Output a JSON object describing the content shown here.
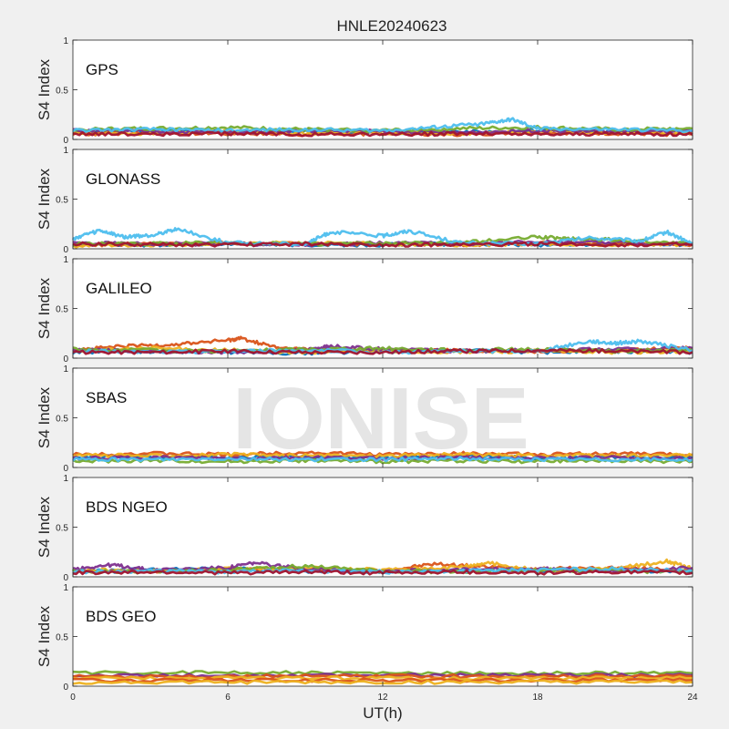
{
  "figure": {
    "title": "HNLE20240623",
    "watermark": "IONISE",
    "xlabel": "UT(h)",
    "background": "#f0f0f0"
  },
  "chart_data": [
    {
      "type": "line",
      "panel_label": "GPS",
      "ylabel": "S4 Index",
      "xlim": [
        0,
        24
      ],
      "ylim": [
        0,
        1
      ],
      "xticks": [
        0,
        6,
        12,
        18,
        24
      ],
      "yticks": [
        0,
        0.5,
        1
      ],
      "ytick_labels": [
        "0",
        "0.5",
        "1"
      ],
      "series": [
        {
          "x": [
            0,
            3,
            6,
            9,
            12,
            15,
            18,
            21,
            24
          ],
          "values": [
            0.08,
            0.09,
            0.07,
            0.08,
            0.06,
            0.07,
            0.09,
            0.08,
            0.08
          ],
          "color": "#0072bd"
        },
        {
          "x": [
            0,
            3,
            6,
            9,
            12,
            15,
            18,
            21,
            24
          ],
          "values": [
            0.05,
            0.07,
            0.06,
            0.05,
            0.06,
            0.05,
            0.07,
            0.06,
            0.05
          ],
          "color": "#d95319"
        },
        {
          "x": [
            0,
            3,
            6,
            9,
            12,
            15,
            18,
            21,
            24
          ],
          "values": [
            0.07,
            0.06,
            0.08,
            0.06,
            0.07,
            0.06,
            0.08,
            0.07,
            0.07
          ],
          "color": "#edb120"
        },
        {
          "x": [
            0,
            3,
            6,
            9,
            12,
            15,
            18,
            21,
            24
          ],
          "values": [
            0.09,
            0.08,
            0.07,
            0.09,
            0.08,
            0.07,
            0.09,
            0.08,
            0.08
          ],
          "color": "#7e2f8e"
        },
        {
          "x": [
            0,
            3,
            6,
            9,
            12,
            15,
            18,
            21,
            24
          ],
          "values": [
            0.1,
            0.11,
            0.12,
            0.1,
            0.09,
            0.11,
            0.12,
            0.1,
            0.11
          ],
          "color": "#77ac30"
        },
        {
          "x": [
            0,
            3,
            6,
            9,
            12,
            14,
            16,
            17,
            18,
            21,
            24
          ],
          "values": [
            0.09,
            0.1,
            0.09,
            0.1,
            0.09,
            0.12,
            0.16,
            0.2,
            0.11,
            0.1,
            0.09
          ],
          "color": "#4dbeee"
        },
        {
          "x": [
            0,
            3,
            6,
            9,
            12,
            15,
            18,
            21,
            24
          ],
          "values": [
            0.06,
            0.05,
            0.06,
            0.05,
            0.05,
            0.06,
            0.05,
            0.06,
            0.05
          ],
          "color": "#a2142f"
        }
      ]
    },
    {
      "type": "line",
      "panel_label": "GLONASS",
      "ylabel": "S4 Index",
      "xlim": [
        0,
        24
      ],
      "ylim": [
        0,
        1
      ],
      "xticks": [
        0,
        6,
        12,
        18,
        24
      ],
      "yticks": [
        0,
        0.5,
        1
      ],
      "ytick_labels": [
        "0",
        "0.5",
        "1"
      ],
      "series": [
        {
          "x": [
            0,
            3,
            6,
            9,
            12,
            15,
            18,
            21,
            24
          ],
          "values": [
            0.05,
            0.04,
            0.05,
            0.04,
            0.04,
            0.05,
            0.04,
            0.05,
            0.04
          ],
          "color": "#0072bd"
        },
        {
          "x": [
            0,
            3,
            6,
            9,
            12,
            15,
            18,
            21,
            24
          ],
          "values": [
            0.04,
            0.05,
            0.06,
            0.05,
            0.05,
            0.04,
            0.06,
            0.05,
            0.04
          ],
          "color": "#d95319"
        },
        {
          "x": [
            0,
            3,
            6,
            9,
            12,
            15,
            18,
            21,
            24
          ],
          "values": [
            0.03,
            0.04,
            0.05,
            0.06,
            0.05,
            0.04,
            0.05,
            0.04,
            0.04
          ],
          "color": "#edb120"
        },
        {
          "x": [
            0,
            3,
            6,
            9,
            12,
            15,
            18,
            21,
            24
          ],
          "values": [
            0.06,
            0.05,
            0.05,
            0.04,
            0.06,
            0.05,
            0.07,
            0.06,
            0.05
          ],
          "color": "#7e2f8e"
        },
        {
          "x": [
            0,
            3,
            6,
            9,
            12,
            15,
            18,
            19.5,
            21,
            24
          ],
          "values": [
            0.05,
            0.05,
            0.06,
            0.05,
            0.05,
            0.06,
            0.12,
            0.1,
            0.09,
            0.05
          ],
          "color": "#77ac30"
        },
        {
          "x": [
            0,
            1,
            2,
            3,
            4,
            6,
            9,
            10,
            12,
            13,
            15,
            18,
            20,
            22,
            23,
            24
          ],
          "values": [
            0.1,
            0.18,
            0.12,
            0.13,
            0.2,
            0.06,
            0.05,
            0.17,
            0.13,
            0.18,
            0.06,
            0.05,
            0.11,
            0.08,
            0.17,
            0.05
          ],
          "color": "#4dbeee"
        },
        {
          "x": [
            0,
            3,
            6,
            9,
            12,
            15,
            18,
            21,
            24
          ],
          "values": [
            0.05,
            0.04,
            0.04,
            0.05,
            0.04,
            0.04,
            0.05,
            0.04,
            0.04
          ],
          "color": "#a2142f"
        }
      ]
    },
    {
      "type": "line",
      "panel_label": "GALILEO",
      "ylabel": "S4 Index",
      "xlim": [
        0,
        24
      ],
      "ylim": [
        0,
        1
      ],
      "xticks": [
        0,
        6,
        12,
        18,
        24
      ],
      "yticks": [
        0,
        0.5,
        1
      ],
      "ytick_labels": [
        "0",
        "0.5",
        "1"
      ],
      "series": [
        {
          "x": [
            0,
            3,
            6,
            9,
            12,
            15,
            18,
            21,
            24
          ],
          "values": [
            0.06,
            0.07,
            0.06,
            0.05,
            0.07,
            0.08,
            0.06,
            0.07,
            0.06
          ],
          "color": "#0072bd"
        },
        {
          "x": [
            0,
            2,
            4,
            6,
            6.5,
            8,
            10,
            12,
            15,
            18,
            21,
            24
          ],
          "values": [
            0.08,
            0.12,
            0.14,
            0.18,
            0.2,
            0.1,
            0.08,
            0.07,
            0.08,
            0.07,
            0.08,
            0.1
          ],
          "color": "#d95319"
        },
        {
          "x": [
            0,
            3,
            6,
            9,
            12,
            15,
            18,
            21,
            24
          ],
          "values": [
            0.07,
            0.1,
            0.08,
            0.06,
            0.07,
            0.06,
            0.07,
            0.06,
            0.07
          ],
          "color": "#edb120"
        },
        {
          "x": [
            0,
            3,
            6,
            9,
            10,
            12,
            15,
            18,
            21,
            24
          ],
          "values": [
            0.08,
            0.07,
            0.06,
            0.08,
            0.12,
            0.09,
            0.07,
            0.08,
            0.09,
            0.1
          ],
          "color": "#7e2f8e"
        },
        {
          "x": [
            0,
            3,
            6,
            9,
            12,
            15,
            18,
            21,
            24
          ],
          "values": [
            0.09,
            0.08,
            0.07,
            0.09,
            0.1,
            0.08,
            0.09,
            0.07,
            0.08
          ],
          "color": "#77ac30"
        },
        {
          "x": [
            0,
            3,
            6,
            9,
            12,
            15,
            18,
            20,
            21,
            22,
            24
          ],
          "values": [
            0.07,
            0.06,
            0.07,
            0.08,
            0.06,
            0.07,
            0.07,
            0.17,
            0.15,
            0.17,
            0.08
          ],
          "color": "#4dbeee"
        },
        {
          "x": [
            0,
            3,
            6,
            9,
            12,
            15,
            18,
            21,
            24
          ],
          "values": [
            0.06,
            0.06,
            0.07,
            0.06,
            0.06,
            0.07,
            0.08,
            0.07,
            0.06
          ],
          "color": "#a2142f"
        }
      ]
    },
    {
      "type": "line",
      "panel_label": "SBAS",
      "ylabel": "S4 Index",
      "xlim": [
        0,
        24
      ],
      "ylim": [
        0,
        1
      ],
      "xticks": [
        0,
        6,
        12,
        18,
        24
      ],
      "yticks": [
        0,
        0.5,
        1
      ],
      "ytick_labels": [
        "0",
        "0.5",
        "1"
      ],
      "series": [
        {
          "x": [
            0,
            3,
            6,
            9,
            12,
            15,
            18,
            21,
            24
          ],
          "values": [
            0.1,
            0.11,
            0.1,
            0.11,
            0.1,
            0.11,
            0.1,
            0.11,
            0.1
          ],
          "color": "#0072bd"
        },
        {
          "x": [
            0,
            3,
            6,
            9,
            12,
            15,
            18,
            21,
            24
          ],
          "values": [
            0.13,
            0.14,
            0.13,
            0.15,
            0.13,
            0.14,
            0.13,
            0.14,
            0.13
          ],
          "color": "#d95319"
        },
        {
          "x": [
            0,
            3,
            6,
            9,
            12,
            15,
            18,
            21,
            24
          ],
          "values": [
            0.12,
            0.12,
            0.13,
            0.12,
            0.12,
            0.13,
            0.12,
            0.12,
            0.12
          ],
          "color": "#edb120"
        },
        {
          "x": [
            0,
            3,
            6,
            9,
            12,
            15,
            18,
            21,
            24
          ],
          "values": [
            0.09,
            0.1,
            0.09,
            0.1,
            0.09,
            0.1,
            0.09,
            0.1,
            0.09
          ],
          "color": "#7e2f8e"
        },
        {
          "x": [
            0,
            3,
            6,
            9,
            12,
            15,
            18,
            21,
            24
          ],
          "values": [
            0.06,
            0.07,
            0.06,
            0.07,
            0.06,
            0.07,
            0.06,
            0.07,
            0.06
          ],
          "color": "#77ac30"
        },
        {
          "x": [
            0,
            3,
            6,
            9,
            12,
            15,
            18,
            21,
            24
          ],
          "values": [
            0.08,
            0.08,
            0.09,
            0.08,
            0.08,
            0.09,
            0.08,
            0.08,
            0.08
          ],
          "color": "#4dbeee"
        }
      ]
    },
    {
      "type": "line",
      "panel_label": "BDS NGEO",
      "ylabel": "S4 Index",
      "xlim": [
        0,
        24
      ],
      "ylim": [
        0,
        1
      ],
      "xticks": [
        0,
        6,
        12,
        18,
        24
      ],
      "yticks": [
        0,
        0.5,
        1
      ],
      "ytick_labels": [
        "0",
        "0.5",
        "1"
      ],
      "series": [
        {
          "x": [
            0,
            3,
            6,
            9,
            12,
            15,
            18,
            21,
            24
          ],
          "values": [
            0.06,
            0.07,
            0.08,
            0.06,
            0.05,
            0.07,
            0.06,
            0.07,
            0.05
          ],
          "color": "#0072bd"
        },
        {
          "x": [
            0,
            3,
            6,
            9,
            12,
            14,
            16,
            18,
            21,
            24
          ],
          "values": [
            0.05,
            0.06,
            0.07,
            0.08,
            0.06,
            0.13,
            0.1,
            0.08,
            0.09,
            0.07
          ],
          "color": "#d95319"
        },
        {
          "x": [
            0,
            3,
            6,
            9,
            12,
            15,
            16,
            18,
            21,
            23,
            24
          ],
          "values": [
            0.07,
            0.06,
            0.08,
            0.09,
            0.07,
            0.1,
            0.14,
            0.07,
            0.08,
            0.16,
            0.08
          ],
          "color": "#edb120"
        },
        {
          "x": [
            0,
            1.5,
            3,
            6,
            7,
            9,
            12,
            15,
            18,
            21,
            24
          ],
          "values": [
            0.08,
            0.12,
            0.07,
            0.09,
            0.14,
            0.08,
            0.06,
            0.07,
            0.08,
            0.06,
            0.09
          ],
          "color": "#7e2f8e"
        },
        {
          "x": [
            0,
            3,
            6,
            9,
            12,
            15,
            18,
            21,
            24
          ],
          "values": [
            0.06,
            0.05,
            0.07,
            0.11,
            0.06,
            0.05,
            0.07,
            0.06,
            0.05
          ],
          "color": "#77ac30"
        },
        {
          "x": [
            0,
            3,
            6,
            9,
            12,
            15,
            18,
            21,
            24
          ],
          "values": [
            0.05,
            0.06,
            0.05,
            0.06,
            0.05,
            0.06,
            0.07,
            0.08,
            0.06
          ],
          "color": "#4dbeee"
        },
        {
          "x": [
            0,
            3,
            6,
            9,
            12,
            15,
            18,
            21,
            24
          ],
          "values": [
            0.04,
            0.05,
            0.04,
            0.05,
            0.04,
            0.05,
            0.04,
            0.05,
            0.04
          ],
          "color": "#a2142f"
        }
      ]
    },
    {
      "type": "line",
      "panel_label": "BDS GEO",
      "ylabel": "S4 Index",
      "xlim": [
        0,
        24
      ],
      "ylim": [
        0,
        1
      ],
      "xticks": [
        0,
        6,
        12,
        18,
        24
      ],
      "yticks": [
        0,
        0.5,
        1
      ],
      "ytick_labels": [
        "0",
        "0.5",
        "1"
      ],
      "series": [
        {
          "x": [
            0,
            6,
            12,
            18,
            24
          ],
          "values": [
            0.13,
            0.14,
            0.13,
            0.13,
            0.13
          ],
          "color": "#77ac30"
        },
        {
          "x": [
            0,
            6,
            12,
            18,
            24
          ],
          "values": [
            0.11,
            0.11,
            0.11,
            0.11,
            0.11
          ],
          "color": "#7e2f8e"
        },
        {
          "x": [
            0,
            6,
            12,
            18,
            24
          ],
          "values": [
            0.1,
            0.1,
            0.1,
            0.1,
            0.1
          ],
          "color": "#d95319"
        },
        {
          "x": [
            0,
            6,
            12,
            18,
            24
          ],
          "values": [
            0.08,
            0.08,
            0.08,
            0.08,
            0.08
          ],
          "color": "#edb120"
        },
        {
          "x": [
            0,
            6,
            12,
            18,
            24
          ],
          "values": [
            0.06,
            0.06,
            0.06,
            0.06,
            0.06
          ],
          "color": "#d95319"
        },
        {
          "x": [
            0,
            6,
            12,
            18,
            24
          ],
          "values": [
            0.04,
            0.04,
            0.04,
            0.04,
            0.04
          ],
          "color": "#edb120"
        }
      ]
    }
  ]
}
